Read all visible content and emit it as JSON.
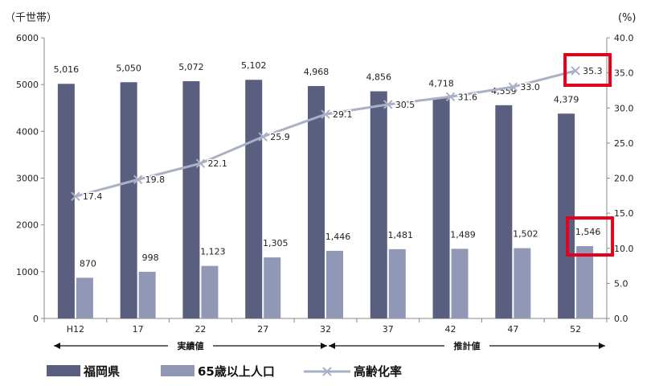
{
  "chart_data": {
    "type": "bar",
    "y_left_unit": "（千世帯）",
    "y_right_unit": "(%)",
    "categories": [
      "H12",
      "17",
      "22",
      "27",
      "32",
      "37",
      "42",
      "47",
      "52"
    ],
    "ylim_left": [
      0,
      6000
    ],
    "ylim_right": [
      0,
      40
    ],
    "y_left_ticks": [
      0,
      1000,
      2000,
      3000,
      4000,
      5000,
      6000
    ],
    "y_right_ticks": [
      "0.0",
      "5.0",
      "10.0",
      "15.0",
      "20.0",
      "25.0",
      "30.0",
      "35.0",
      "40.0"
    ],
    "series": [
      {
        "name": "福岡県",
        "kind": "bar",
        "axis": "left",
        "color": "#5a5f80",
        "values": [
          5016,
          5050,
          5072,
          5102,
          4968,
          4856,
          4718,
          4559,
          4379
        ],
        "labels": [
          "5,016",
          "5,050",
          "5,072",
          "5,102",
          "4,968",
          "4,856",
          "4,718",
          "4,559",
          "4,379"
        ]
      },
      {
        "name": "65歳以上人口",
        "kind": "bar",
        "axis": "left",
        "color": "#9198b6",
        "values": [
          870,
          998,
          1123,
          1305,
          1446,
          1481,
          1489,
          1502,
          1546
        ],
        "labels": [
          "870",
          "998",
          "1,123",
          "1,305",
          "1,446",
          "1,481",
          "1,489",
          "1,502",
          "1,546"
        ]
      },
      {
        "name": "高齢化率",
        "kind": "line",
        "axis": "right",
        "color": "#aab0c6",
        "values": [
          17.4,
          19.8,
          22.1,
          25.9,
          29.1,
          30.5,
          31.6,
          33.0,
          35.3
        ],
        "labels": [
          "17.4",
          "19.8",
          "22.1",
          "25.9",
          "29.1",
          "30.5",
          "31.6",
          "33.0",
          "35.3"
        ]
      }
    ],
    "periods": [
      {
        "label": "実績値",
        "from": 0,
        "to": 4
      },
      {
        "label": "推計値",
        "from": 4,
        "to": 8
      }
    ],
    "highlights": [
      {
        "series": 2,
        "index": 8,
        "color": "#e0001b"
      },
      {
        "series": 1,
        "index": 8,
        "color": "#e0001b"
      }
    ],
    "legend": "bottom",
    "grid": false
  }
}
